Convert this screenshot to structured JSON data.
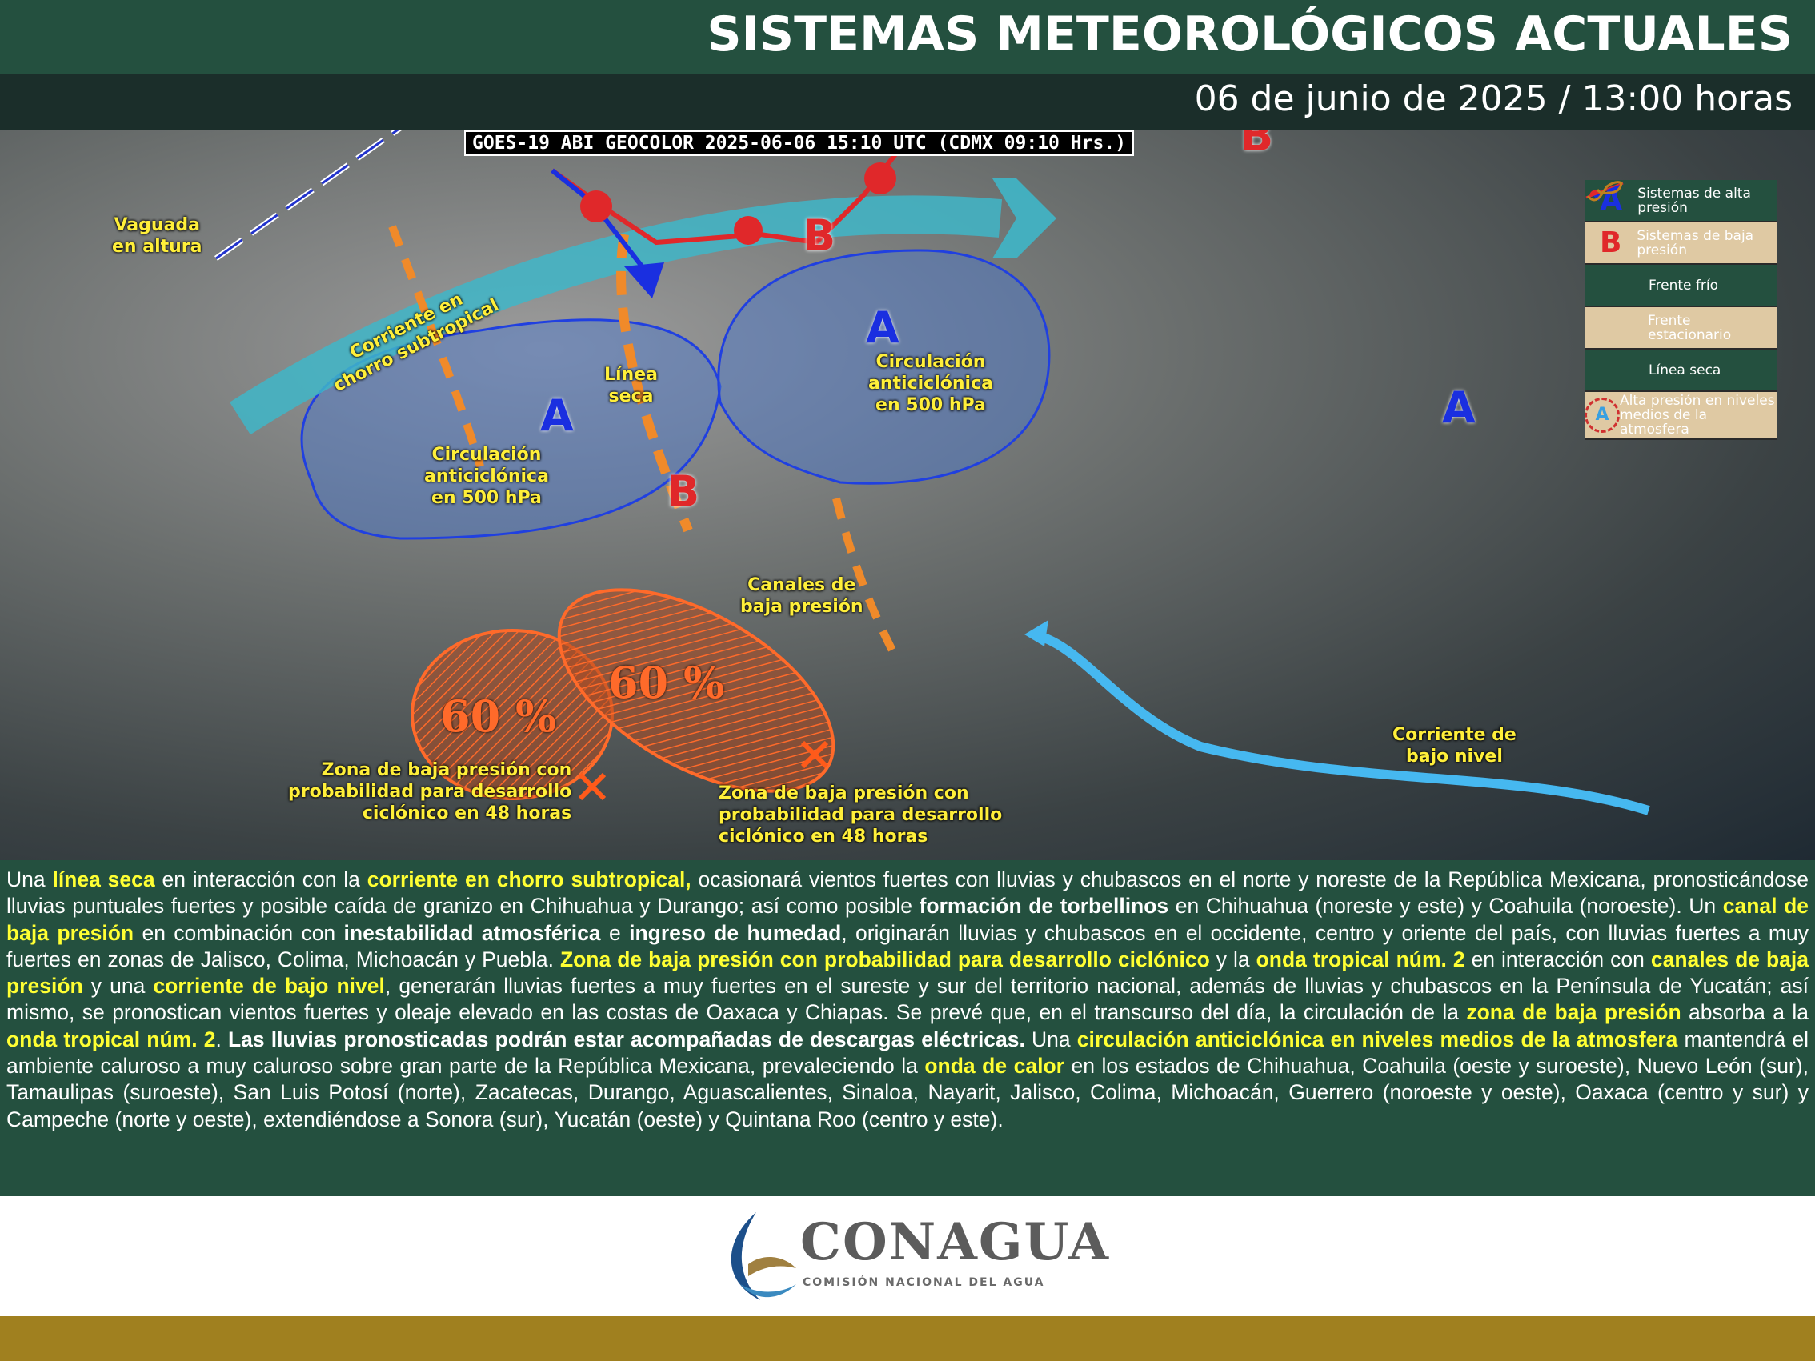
{
  "header": {
    "title": "SISTEMAS METEOROLÓGICOS ACTUALES",
    "date": "06 de junio de 2025 / 13:00 horas"
  },
  "map": {
    "satellite_label": "GOES-19 ABI GEOCOLOR 2025-06-06 15:10 UTC (CDMX  09:10 Hrs.)",
    "labels": {
      "vaguada": "Vaguada\nen altura",
      "chorro": "Corriente en\nchorro subtropical",
      "linea_seca": "Línea\nseca",
      "circ_left": "Circulación\nanticiclónica\nen 500 hPa",
      "circ_right": "Circulación\nanticiclónica\nen 500 hPa",
      "canales": "Canales de\nbaja presión",
      "zona_left": "Zona de baja presión con\nprobabilidad para desarrollo\nciclónico en 48 horas",
      "zona_right": "Zona de baja presión con\nprobabilidad para desarrollo\nciclónico en 48 horas",
      "bajo_nivel": "Corriente de\nbajo nivel"
    },
    "high_symbol": "A",
    "low_symbol": "B",
    "prob_left": "60 %",
    "prob_right": "60 %",
    "colors": {
      "high": "#1a2fe0",
      "low": "#e0282a",
      "dry_line": "#f08a2a",
      "jet": "#3fb6c8",
      "low_level_jet": "#46b8f0",
      "label": "#ffef3a"
    }
  },
  "legend": [
    {
      "icon": "A",
      "label": "Sistemas de alta presión"
    },
    {
      "icon": "B",
      "label": "Sistemas de baja presión"
    },
    {
      "icon": "cold-front-icon",
      "label": "Frente frío"
    },
    {
      "icon": "stationary-front-icon",
      "label": "Frente estacionario"
    },
    {
      "icon": "dry-line-icon",
      "label": "Línea seca"
    },
    {
      "icon": "A",
      "label": "Alta presión en niveles medios de la atmosfera"
    }
  ],
  "description": [
    {
      "t": "Una "
    },
    {
      "t": "línea seca",
      "h": 1
    },
    {
      "t": " en interacción con la "
    },
    {
      "t": "corriente en chorro subtropical,",
      "h": 1
    },
    {
      "t": " ocasionará vientos fuertes con lluvias y chubascos en el norte y noreste de la República Mexicana, pronosticándose lluvias puntuales fuertes y posible caída de granizo en Chihuahua y Durango; así como posible "
    },
    {
      "t": "formación de torbellinos",
      "b": 1
    },
    {
      "t": " en Chihuahua (noreste y este) y Coahuila (noroeste). Un "
    },
    {
      "t": "canal de baja presión",
      "h": 1
    },
    {
      "t": " en combinación con "
    },
    {
      "t": "inestabilidad atmosférica",
      "b": 1
    },
    {
      "t": " e "
    },
    {
      "t": "ingreso de humedad",
      "b": 1
    },
    {
      "t": ", originarán lluvias y chubascos en el occidente, centro y oriente del país, con lluvias fuertes a muy fuertes en zonas de Jalisco, Colima, Michoacán y Puebla. "
    },
    {
      "t": "Zona de baja presión con probabilidad para desarrollo ciclónico",
      "h": 1
    },
    {
      "t": " y la "
    },
    {
      "t": "onda tropical núm. 2",
      "h": 1
    },
    {
      "t": " en interacción con "
    },
    {
      "t": "canales de baja presión",
      "h": 1
    },
    {
      "t": " y una "
    },
    {
      "t": "corriente de bajo nivel",
      "h": 1
    },
    {
      "t": ", generarán lluvias fuertes a muy fuertes en el sureste y sur del territorio nacional, además de lluvias y chubascos en la Península de Yucatán; así mismo, se pronostican vientos fuertes y oleaje elevado en las costas de Oaxaca y Chiapas. Se prevé que, en el transcurso del día, la circulación de la "
    },
    {
      "t": "zona de baja presión",
      "h": 1
    },
    {
      "t": " absorba a la "
    },
    {
      "t": "onda tropical núm. 2",
      "h": 1
    },
    {
      "t": ". "
    },
    {
      "t": "Las lluvias pronosticadas podrán estar acompañadas de descargas eléctricas.",
      "b": 1
    },
    {
      "t": " Una "
    },
    {
      "t": "circulación anticiclónica en niveles medios de la atmosfera",
      "h": 1
    },
    {
      "t": " mantendrá el ambiente caluroso a muy caluroso sobre gran parte de la República Mexicana, prevaleciendo la "
    },
    {
      "t": "onda de calor",
      "h": 1
    },
    {
      "t": " en los estados de Chihuahua, Coahuila (oeste y suroeste), Nuevo León (sur), Tamaulipas (suroeste), San Luis Potosí (norte), Zacatecas, Durango, Aguascalientes, Sinaloa, Nayarit, Jalisco, Colima, Michoacán, Guerrero (noroeste y oeste), Oaxaca (centro y sur) y Campeche (norte y oeste), extendiéndose a Sonora (sur), Yucatán (oeste) y Quintana Roo (centro y este)."
    }
  ],
  "footer": {
    "logo_name": "CONAGUA",
    "logo_subtitle": "COMISIÓN NACIONAL DEL AGUA"
  }
}
